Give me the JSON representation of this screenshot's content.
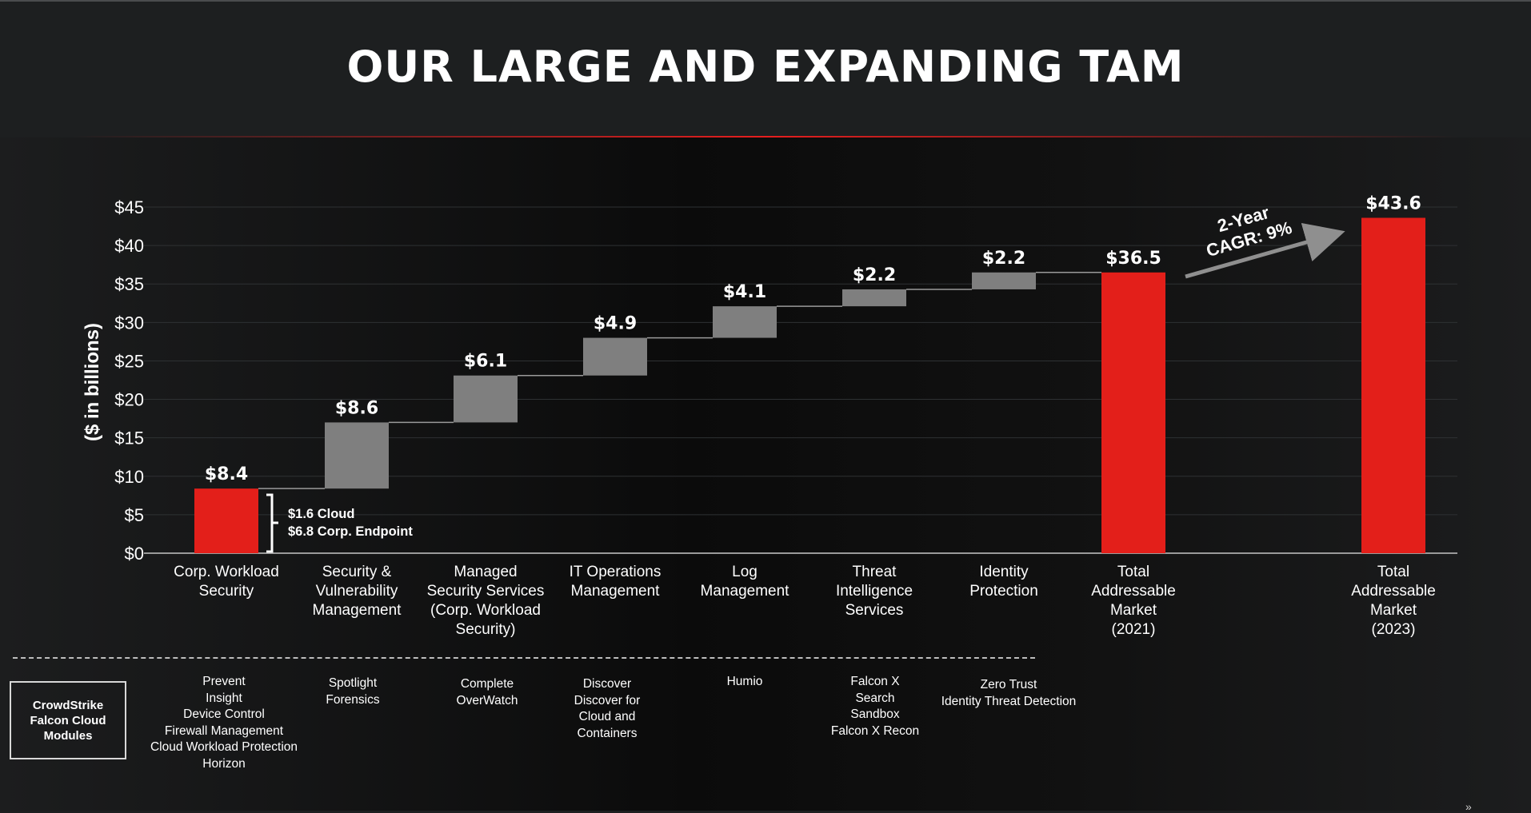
{
  "title": "OUR LARGE AND EXPANDING TAM",
  "colors": {
    "red": "#e31f1a",
    "gray": "#7f7f7f",
    "connector": "#9a9a9a",
    "grid": "#2e3133",
    "text": "#ffffff"
  },
  "chart_data": {
    "type": "waterfall",
    "ylabel": "($ in billions)",
    "ylim": [
      0,
      45
    ],
    "yticks": [
      0,
      5,
      10,
      15,
      20,
      25,
      30,
      35,
      40,
      45
    ],
    "ytick_labels": [
      "$0",
      "$5",
      "$10",
      "$15",
      "$20",
      "$25",
      "$30",
      "$35",
      "$40",
      "$45"
    ],
    "bars": [
      {
        "category": "Corp. Workload\nSecurity",
        "label": "$8.4",
        "start": 0,
        "end": 8.4,
        "kind": "total"
      },
      {
        "category": "Security &\nVulnerability\nManagement",
        "label": "$8.6",
        "start": 8.4,
        "end": 17.0,
        "kind": "increment"
      },
      {
        "category": "Managed\nSecurity Services\n(Corp. Workload\nSecurity)",
        "label": "$6.1",
        "start": 17.0,
        "end": 23.1,
        "kind": "increment"
      },
      {
        "category": "IT Operations\nManagement",
        "label": "$4.9",
        "start": 23.1,
        "end": 28.0,
        "kind": "increment"
      },
      {
        "category": "Log\nManagement",
        "label": "$4.1",
        "start": 28.0,
        "end": 32.1,
        "kind": "increment"
      },
      {
        "category": "Threat\nIntelligence\nServices",
        "label": "$2.2",
        "start": 32.1,
        "end": 34.3,
        "kind": "increment"
      },
      {
        "category": "Identity\nProtection",
        "label": "$2.2",
        "start": 34.3,
        "end": 36.5,
        "kind": "increment"
      },
      {
        "category": "Total\nAddressable\nMarket\n(2021)",
        "label": "$36.5",
        "start": 0,
        "end": 36.5,
        "kind": "total"
      },
      {
        "category": "Total\nAddressable\nMarket\n(2023)",
        "label": "$43.6",
        "start": 0,
        "end": 43.6,
        "kind": "total"
      }
    ],
    "annotations": {
      "breakdown": [
        "$1.6 Cloud",
        "$6.8 Corp. Endpoint"
      ],
      "cagr": "2-Year\nCAGR: 9%"
    }
  },
  "modules": {
    "box_label": "CrowdStrike\nFalcon Cloud\nModules",
    "columns": [
      [
        "Prevent",
        "Insight",
        "Device Control",
        "Firewall Management",
        "Cloud Workload Protection",
        "Horizon"
      ],
      [
        "Spotlight",
        "Forensics"
      ],
      [
        "Complete",
        "OverWatch"
      ],
      [
        "Discover",
        "Discover for",
        "Cloud and",
        "Containers"
      ],
      [
        "Humio"
      ],
      [
        "Falcon X",
        "Search",
        "Sandbox",
        "Falcon X Recon"
      ],
      [
        "Zero Trust",
        "Identity Threat Detection"
      ]
    ]
  },
  "corner_mark": "»"
}
